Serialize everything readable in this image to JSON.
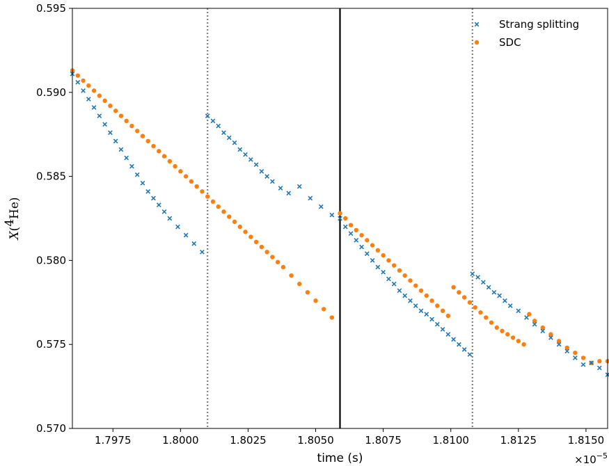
{
  "chart_data": {
    "type": "scatter",
    "xlabel": "time (s)",
    "x_scale_label": "×10",
    "x_scale_exponent": "−5",
    "ylabel_parts": {
      "prefix": "X",
      "open": "(",
      "sup": "4",
      "element": "He",
      "close": ")"
    },
    "xlim": [
      1.796,
      1.8158
    ],
    "ylim": [
      0.57,
      0.595
    ],
    "xticks": [
      1.7975,
      1.8,
      1.8025,
      1.805,
      1.8075,
      1.81,
      1.8125,
      1.815
    ],
    "xtick_labels": [
      "1.7975",
      "1.8000",
      "1.8025",
      "1.8050",
      "1.8075",
      "1.8100",
      "1.8125",
      "1.8150"
    ],
    "yticks": [
      0.57,
      0.575,
      0.58,
      0.585,
      0.59,
      0.595
    ],
    "ytick_labels": [
      "0.570",
      "0.575",
      "0.580",
      "0.585",
      "0.590",
      "0.595"
    ],
    "grid": false,
    "legend_position": "top-right",
    "vlines": [
      {
        "x": 1.801,
        "style": "dotted",
        "color": "#808080"
      },
      {
        "x": 1.8059,
        "style": "solid",
        "color": "#000000"
      },
      {
        "x": 1.8108,
        "style": "dotted",
        "color": "#808080"
      }
    ],
    "series": [
      {
        "name": "Strang splitting",
        "marker": "x",
        "color": "#1f77b4",
        "x": [
          1.796,
          1.7962,
          1.7964,
          1.7966,
          1.7968,
          1.797,
          1.7972,
          1.7974,
          1.7976,
          1.7978,
          1.798,
          1.7982,
          1.7984,
          1.7986,
          1.7988,
          1.799,
          1.7992,
          1.7994,
          1.7996,
          1.7999,
          1.8002,
          1.8005,
          1.8008,
          1.801,
          1.8012,
          1.8014,
          1.8016,
          1.8018,
          1.802,
          1.8022,
          1.8024,
          1.8026,
          1.8028,
          1.803,
          1.8032,
          1.8034,
          1.8037,
          1.804,
          1.8044,
          1.8048,
          1.8052,
          1.8056,
          1.8059,
          1.8061,
          1.8063,
          1.8065,
          1.8067,
          1.8069,
          1.8071,
          1.8073,
          1.8075,
          1.8077,
          1.8079,
          1.8081,
          1.8083,
          1.8085,
          1.8087,
          1.8089,
          1.8091,
          1.8093,
          1.8095,
          1.8097,
          1.8099,
          1.8101,
          1.8103,
          1.8105,
          1.8107,
          1.8108,
          1.811,
          1.8112,
          1.8114,
          1.8116,
          1.8118,
          1.812,
          1.8122,
          1.8125,
          1.8128,
          1.8131,
          1.8134,
          1.8137,
          1.814,
          1.8143,
          1.8146,
          1.8149,
          1.8152,
          1.8155,
          1.8158
        ],
        "y": [
          0.5911,
          0.5906,
          0.5901,
          0.5896,
          0.5891,
          0.5886,
          0.5881,
          0.5876,
          0.5871,
          0.5866,
          0.5861,
          0.5856,
          0.5851,
          0.5846,
          0.5841,
          0.5837,
          0.5833,
          0.5829,
          0.5825,
          0.582,
          0.5815,
          0.581,
          0.5805,
          0.5886,
          0.5883,
          0.588,
          0.5876,
          0.5873,
          0.587,
          0.5866,
          0.5863,
          0.586,
          0.5857,
          0.5853,
          0.585,
          0.5847,
          0.5843,
          0.584,
          0.5844,
          0.5837,
          0.5832,
          0.5827,
          0.5825,
          0.582,
          0.5816,
          0.5812,
          0.5808,
          0.5804,
          0.58,
          0.5796,
          0.5793,
          0.5789,
          0.5786,
          0.5782,
          0.5779,
          0.5776,
          0.5773,
          0.577,
          0.5768,
          0.5765,
          0.5762,
          0.5759,
          0.5756,
          0.5753,
          0.575,
          0.5747,
          0.5744,
          0.5792,
          0.579,
          0.5787,
          0.5784,
          0.5781,
          0.5779,
          0.5776,
          0.5773,
          0.577,
          0.5766,
          0.5762,
          0.5758,
          0.5754,
          0.575,
          0.5746,
          0.5742,
          0.5738,
          0.5739,
          0.5736,
          0.5732
        ]
      },
      {
        "name": "SDC",
        "marker": "o",
        "color": "#ff7f0e",
        "x": [
          1.796,
          1.7962,
          1.7964,
          1.7966,
          1.7968,
          1.797,
          1.7972,
          1.7974,
          1.7976,
          1.7978,
          1.798,
          1.7982,
          1.7984,
          1.7986,
          1.7988,
          1.799,
          1.7992,
          1.7994,
          1.7996,
          1.7998,
          1.8,
          1.8002,
          1.8004,
          1.8006,
          1.8008,
          1.801,
          1.8012,
          1.8014,
          1.8016,
          1.8018,
          1.802,
          1.8022,
          1.8024,
          1.8026,
          1.8028,
          1.803,
          1.8032,
          1.8034,
          1.8036,
          1.8038,
          1.8041,
          1.8044,
          1.8047,
          1.805,
          1.8053,
          1.8056,
          1.8059,
          1.8061,
          1.8063,
          1.8065,
          1.8067,
          1.8069,
          1.8071,
          1.8073,
          1.8075,
          1.8077,
          1.8079,
          1.8081,
          1.8083,
          1.8085,
          1.8087,
          1.8089,
          1.8091,
          1.8093,
          1.8095,
          1.8097,
          1.8099,
          1.8101,
          1.8103,
          1.8105,
          1.8107,
          1.8109,
          1.8111,
          1.8113,
          1.8115,
          1.8117,
          1.8119,
          1.8121,
          1.8123,
          1.8125,
          1.8127,
          1.8129,
          1.8131,
          1.8134,
          1.8137,
          1.814,
          1.8143,
          1.8146,
          1.8149,
          1.8152,
          1.8155,
          1.8158
        ],
        "y": [
          0.5913,
          0.591,
          0.5907,
          0.5904,
          0.5901,
          0.5898,
          0.5895,
          0.5892,
          0.5889,
          0.5886,
          0.5883,
          0.588,
          0.5877,
          0.5874,
          0.5871,
          0.5868,
          0.5865,
          0.5862,
          0.5859,
          0.5856,
          0.5853,
          0.585,
          0.5847,
          0.5844,
          0.5841,
          0.5838,
          0.5835,
          0.5832,
          0.5829,
          0.5826,
          0.5823,
          0.582,
          0.5817,
          0.5814,
          0.5811,
          0.5808,
          0.5805,
          0.5802,
          0.5799,
          0.5796,
          0.5791,
          0.5786,
          0.5781,
          0.5776,
          0.5771,
          0.5766,
          0.5828,
          0.5825,
          0.5821,
          0.5818,
          0.5815,
          0.5812,
          0.5809,
          0.5806,
          0.5803,
          0.58,
          0.5797,
          0.5794,
          0.5791,
          0.5788,
          0.5785,
          0.5782,
          0.5779,
          0.5776,
          0.5773,
          0.577,
          0.5767,
          0.5784,
          0.5781,
          0.5778,
          0.5775,
          0.5772,
          0.5769,
          0.5766,
          0.5763,
          0.576,
          0.5758,
          0.5756,
          0.5754,
          0.5752,
          0.575,
          0.5768,
          0.5764,
          0.576,
          0.5756,
          0.5752,
          0.5748,
          0.5745,
          0.5742,
          0.5739,
          0.574,
          0.574
        ]
      }
    ]
  }
}
